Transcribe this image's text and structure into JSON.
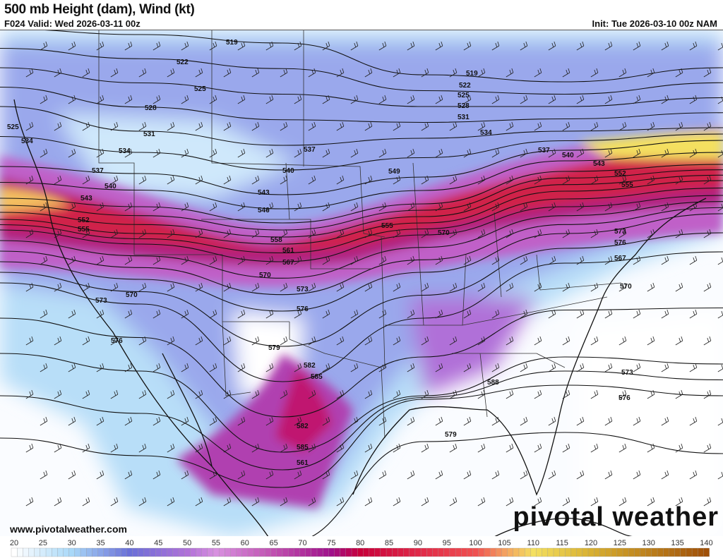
{
  "header": {
    "title": "500 mb Height (dam), Wind (kt)",
    "valid": "F024 Valid: Wed 2026-03-11 00z",
    "init": "Init: Tue 2026-03-10 00z NAM"
  },
  "footer": {
    "website": "www.pivotalweather.com",
    "brand": "pivotal weather"
  },
  "map": {
    "field_fill": "wind speed (kt)",
    "contour_field": "500 mb height (dam)",
    "contour_labels": [
      "519",
      "522",
      "525",
      "528",
      "531",
      "534",
      "537",
      "540",
      "543",
      "546",
      "549",
      "552",
      "555",
      "558",
      "561",
      "564",
      "567",
      "570",
      "573",
      "576",
      "579",
      "582",
      "585",
      "588",
      "519",
      "522",
      "525",
      "528",
      "531",
      "534",
      "537",
      "540",
      "543",
      "546",
      "549",
      "555",
      "558",
      "561",
      "567",
      "570",
      "573",
      "576",
      "579",
      "582",
      "585",
      "588",
      "525",
      "534",
      "537",
      "540",
      "543",
      "552",
      "555",
      "570",
      "573",
      "576",
      "567",
      "570",
      "573",
      "576",
      "579",
      "582",
      "585",
      "561"
    ]
  },
  "colorbar": {
    "ticks": [
      "20",
      "25",
      "30",
      "35",
      "40",
      "45",
      "50",
      "55",
      "60",
      "65",
      "70",
      "75",
      "80",
      "85",
      "90",
      "95",
      "100",
      "105",
      "110",
      "115",
      "120",
      "125",
      "130",
      "135",
      "140"
    ],
    "colors": {
      "20": "#ffffff",
      "30": "#a8d8f8",
      "40": "#6a6fd8",
      "50": "#b070d8",
      "55": "#d890e0",
      "65": "#c050b0",
      "75": "#a0108a",
      "80": "#c8003a",
      "90": "#e02848",
      "100": "#f05050",
      "105": "#f4a060",
      "110": "#f4e060",
      "120": "#d8b030",
      "140": "#a05008"
    }
  }
}
